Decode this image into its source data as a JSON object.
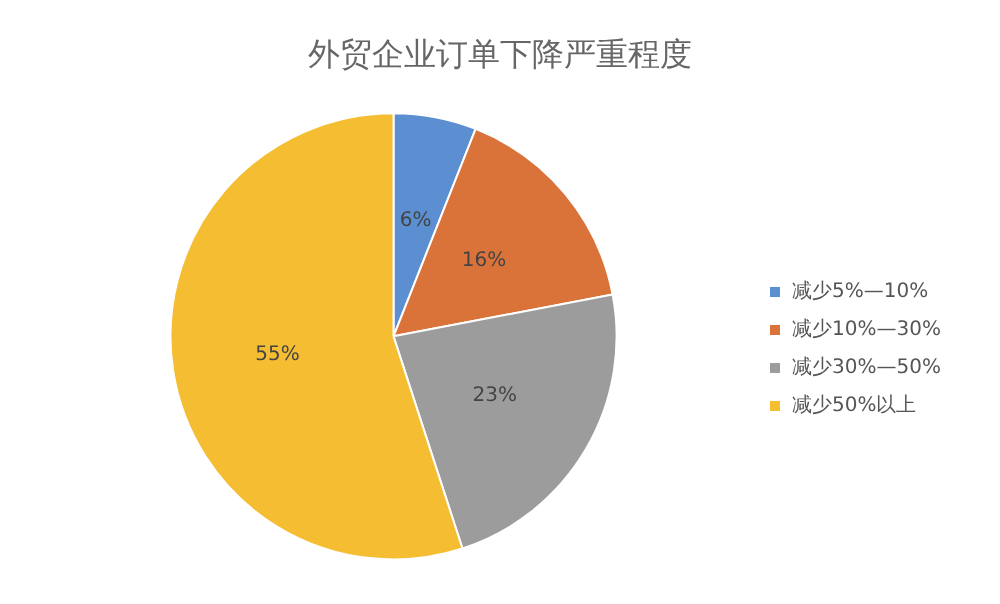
{
  "chart_data": {
    "type": "pie",
    "title": "外贸企业订单下降严重程度",
    "categories": [
      "减少5%—10%",
      "减少10%—30%",
      "减少30%—50%",
      "减少50%以上"
    ],
    "values": [
      6,
      16,
      23,
      55
    ],
    "colors": [
      "#5b8fd1",
      "#d9733a",
      "#9c9c9c",
      "#f4bd32"
    ],
    "value_labels": [
      "6%",
      "16%",
      "23%",
      "55%"
    ],
    "legend": "right"
  }
}
